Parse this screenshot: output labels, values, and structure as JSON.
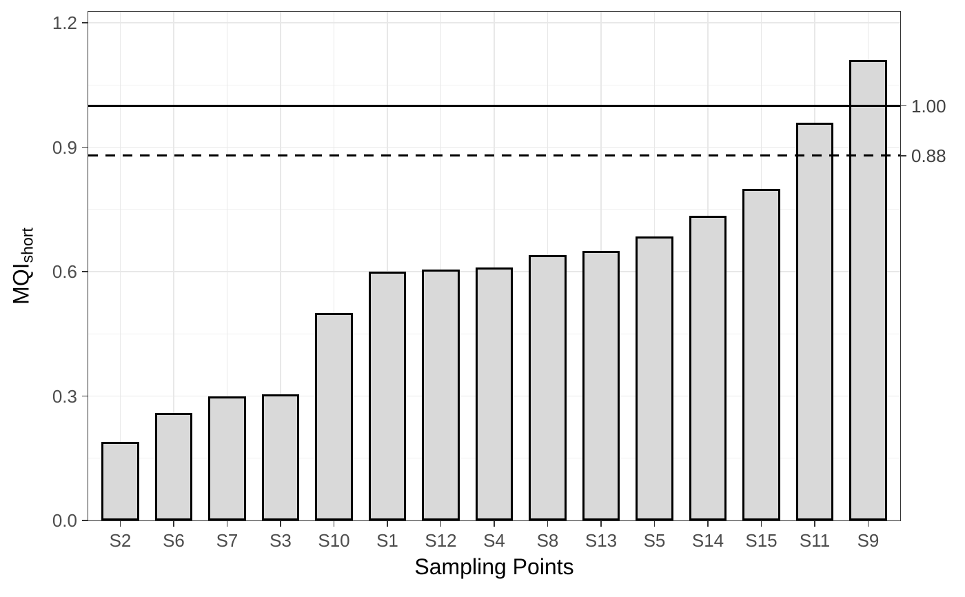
{
  "chart_data": {
    "type": "bar",
    "title": "",
    "xlabel": "Sampling Points",
    "ylabel_main": "MQI",
    "ylabel_sub": "short",
    "categories": [
      "S2",
      "S6",
      "S7",
      "S3",
      "S10",
      "S1",
      "S12",
      "S4",
      "S8",
      "S13",
      "S5",
      "S14",
      "S15",
      "S11",
      "S9"
    ],
    "values": [
      0.19,
      0.26,
      0.3,
      0.305,
      0.5,
      0.6,
      0.605,
      0.61,
      0.64,
      0.65,
      0.685,
      0.735,
      0.8,
      0.96,
      1.11
    ],
    "ylim": [
      0,
      1.227
    ],
    "y_major_ticks": [
      {
        "value": 0.0,
        "label": "0.0"
      },
      {
        "value": 0.3,
        "label": "0.3"
      },
      {
        "value": 0.6,
        "label": "0.6"
      },
      {
        "value": 0.9,
        "label": "0.9"
      },
      {
        "value": 1.2,
        "label": "1.2"
      }
    ],
    "y_minor_ticks": [
      0.15,
      0.45,
      0.75,
      1.05
    ],
    "reference_lines": [
      {
        "value": 1.0,
        "label": "1.00",
        "style": "solid"
      },
      {
        "value": 0.88,
        "label": "0.88",
        "style": "dashed"
      }
    ],
    "grid": true,
    "legend": false,
    "colors": {
      "bar_fill": "#d9d9d9",
      "bar_border": "#000000",
      "refline": "#000000",
      "grid_major": "#e8e8e8",
      "grid_minor": "#f1f1f1",
      "panel_border": "#333333",
      "tick_text": "#4d4d4d",
      "title_text": "#000000"
    }
  }
}
